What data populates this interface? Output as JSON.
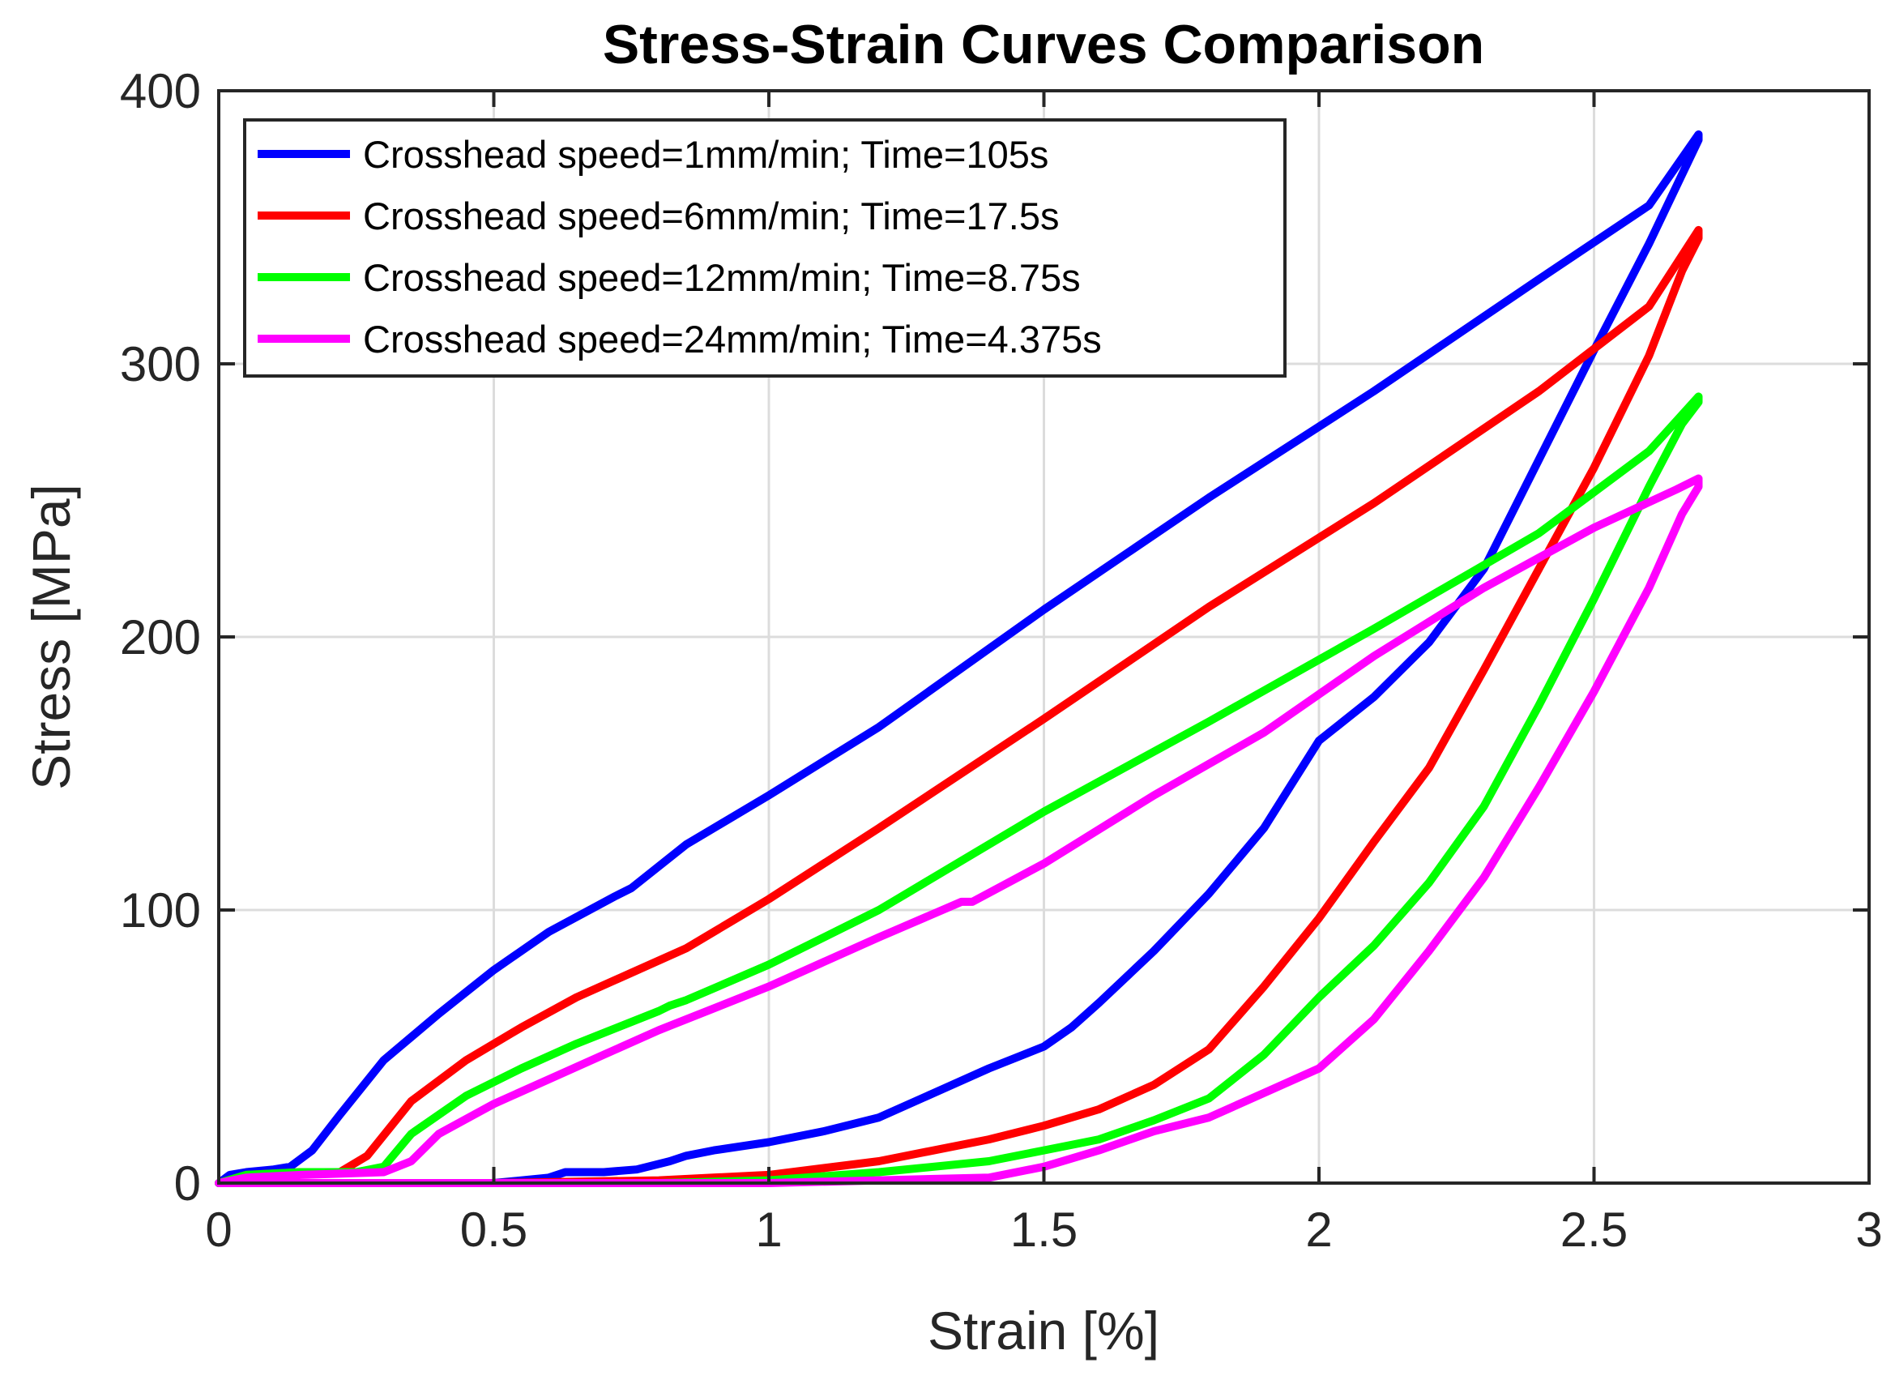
{
  "chart_data": {
    "type": "line",
    "title": "Stress-Strain Curves Comparison",
    "xlabel": "Strain [%]",
    "ylabel": "Stress [MPa]",
    "xlim": [
      0,
      3
    ],
    "ylim": [
      0,
      400
    ],
    "xticks": [
      0,
      0.5,
      1,
      1.5,
      2,
      2.5,
      3
    ],
    "xtick_labels": [
      "0",
      "0.5",
      "1",
      "1.5",
      "2",
      "2.5",
      "3"
    ],
    "yticks": [
      0,
      100,
      200,
      300,
      400
    ],
    "ytick_labels": [
      "0",
      "100",
      "200",
      "300",
      "400"
    ],
    "grid": true,
    "legend_position": "top-left",
    "series": [
      {
        "name": "Crosshead speed=1mm/min; Time=105s",
        "color": "#0000ff",
        "x": [
          0,
          0.02,
          0.05,
          0.1,
          0.13,
          0.17,
          0.22,
          0.3,
          0.4,
          0.5,
          0.6,
          0.72,
          0.75,
          0.85,
          1.0,
          1.2,
          1.5,
          1.8,
          2.1,
          2.4,
          2.6,
          2.69,
          2.69,
          2.6,
          2.5,
          2.4,
          2.3,
          2.2,
          2.1,
          2.0,
          1.9,
          1.8,
          1.7,
          1.6,
          1.55,
          1.5,
          1.4,
          1.3,
          1.2,
          1.1,
          1.0,
          0.9,
          0.85,
          0.82,
          0.76,
          0.7,
          0.63,
          0.6,
          0.5,
          0.3,
          0.1,
          0
        ],
        "y": [
          0,
          3,
          4,
          5,
          6,
          12,
          25,
          45,
          62,
          78,
          92,
          105,
          108,
          124,
          142,
          167,
          210,
          251,
          290,
          331,
          358,
          384,
          382,
          344,
          305,
          265,
          225,
          198,
          178,
          162,
          130,
          106,
          85,
          66,
          57,
          50,
          42,
          33,
          24,
          19,
          15,
          12,
          10,
          8,
          5,
          4,
          4,
          2,
          0,
          0,
          0,
          0
        ]
      },
      {
        "name": "Crosshead speed=6mm/min; Time=17.5s",
        "color": "#ff0000",
        "x": [
          0,
          0.05,
          0.15,
          0.22,
          0.27,
          0.35,
          0.45,
          0.55,
          0.65,
          0.75,
          0.85,
          1.0,
          1.2,
          1.5,
          1.8,
          2.1,
          2.4,
          2.6,
          2.69,
          2.69,
          2.66,
          2.6,
          2.5,
          2.4,
          2.3,
          2.2,
          2.1,
          2.0,
          1.9,
          1.8,
          1.7,
          1.6,
          1.5,
          1.4,
          1.2,
          1.0,
          0.8,
          0.5,
          0.2,
          0
        ],
        "y": [
          0,
          3,
          4,
          4,
          10,
          30,
          45,
          57,
          68,
          77,
          86,
          104,
          130,
          170,
          211,
          249,
          290,
          321,
          349,
          346,
          334,
          303,
          262,
          225,
          188,
          152,
          125,
          97,
          72,
          49,
          36,
          27,
          21,
          16,
          8,
          3,
          1,
          0,
          0,
          0
        ]
      },
      {
        "name": "Crosshead speed=12mm/min; Time=8.75s",
        "color": "#00ff00",
        "x": [
          0,
          0.05,
          0.15,
          0.25,
          0.3,
          0.35,
          0.45,
          0.55,
          0.65,
          0.8,
          0.82,
          0.85,
          1.0,
          1.2,
          1.5,
          1.8,
          2.1,
          2.4,
          2.6,
          2.69,
          2.69,
          2.66,
          2.6,
          2.5,
          2.4,
          2.3,
          2.2,
          2.1,
          2.0,
          1.9,
          1.8,
          1.7,
          1.6,
          1.5,
          1.4,
          1.2,
          1.0,
          0.8,
          0.5,
          0.2,
          0
        ],
        "y": [
          0,
          3,
          4,
          4,
          6,
          18,
          32,
          42,
          51,
          63,
          65,
          67,
          80,
          100,
          136,
          169,
          203,
          238,
          268,
          288,
          286,
          278,
          255,
          214,
          175,
          138,
          110,
          87,
          68,
          47,
          31,
          23,
          16,
          12,
          8,
          4,
          1,
          0,
          0,
          0,
          0
        ]
      },
      {
        "name": "Crosshead speed=24mm/min; Time=4.375s",
        "color": "#ff00ff",
        "x": [
          0,
          0.05,
          0.15,
          0.3,
          0.35,
          0.4,
          0.5,
          0.6,
          0.7,
          0.8,
          1.0,
          1.2,
          1.35,
          1.37,
          1.5,
          1.7,
          1.9,
          2.1,
          2.3,
          2.5,
          2.65,
          2.69,
          2.69,
          2.66,
          2.6,
          2.5,
          2.4,
          2.3,
          2.2,
          2.1,
          2.0,
          1.9,
          1.8,
          1.7,
          1.6,
          1.5,
          1.4,
          1.2,
          1.0,
          0.8,
          0.5,
          0.2,
          0
        ],
        "y": [
          0,
          2,
          3,
          4,
          8,
          18,
          29,
          38,
          47,
          56,
          72,
          90,
          103,
          103,
          117,
          142,
          165,
          193,
          218,
          240,
          254,
          258,
          255,
          245,
          218,
          180,
          145,
          112,
          85,
          60,
          42,
          33,
          24,
          19,
          12,
          6,
          2,
          1,
          0,
          0,
          0,
          0,
          0
        ]
      }
    ]
  }
}
